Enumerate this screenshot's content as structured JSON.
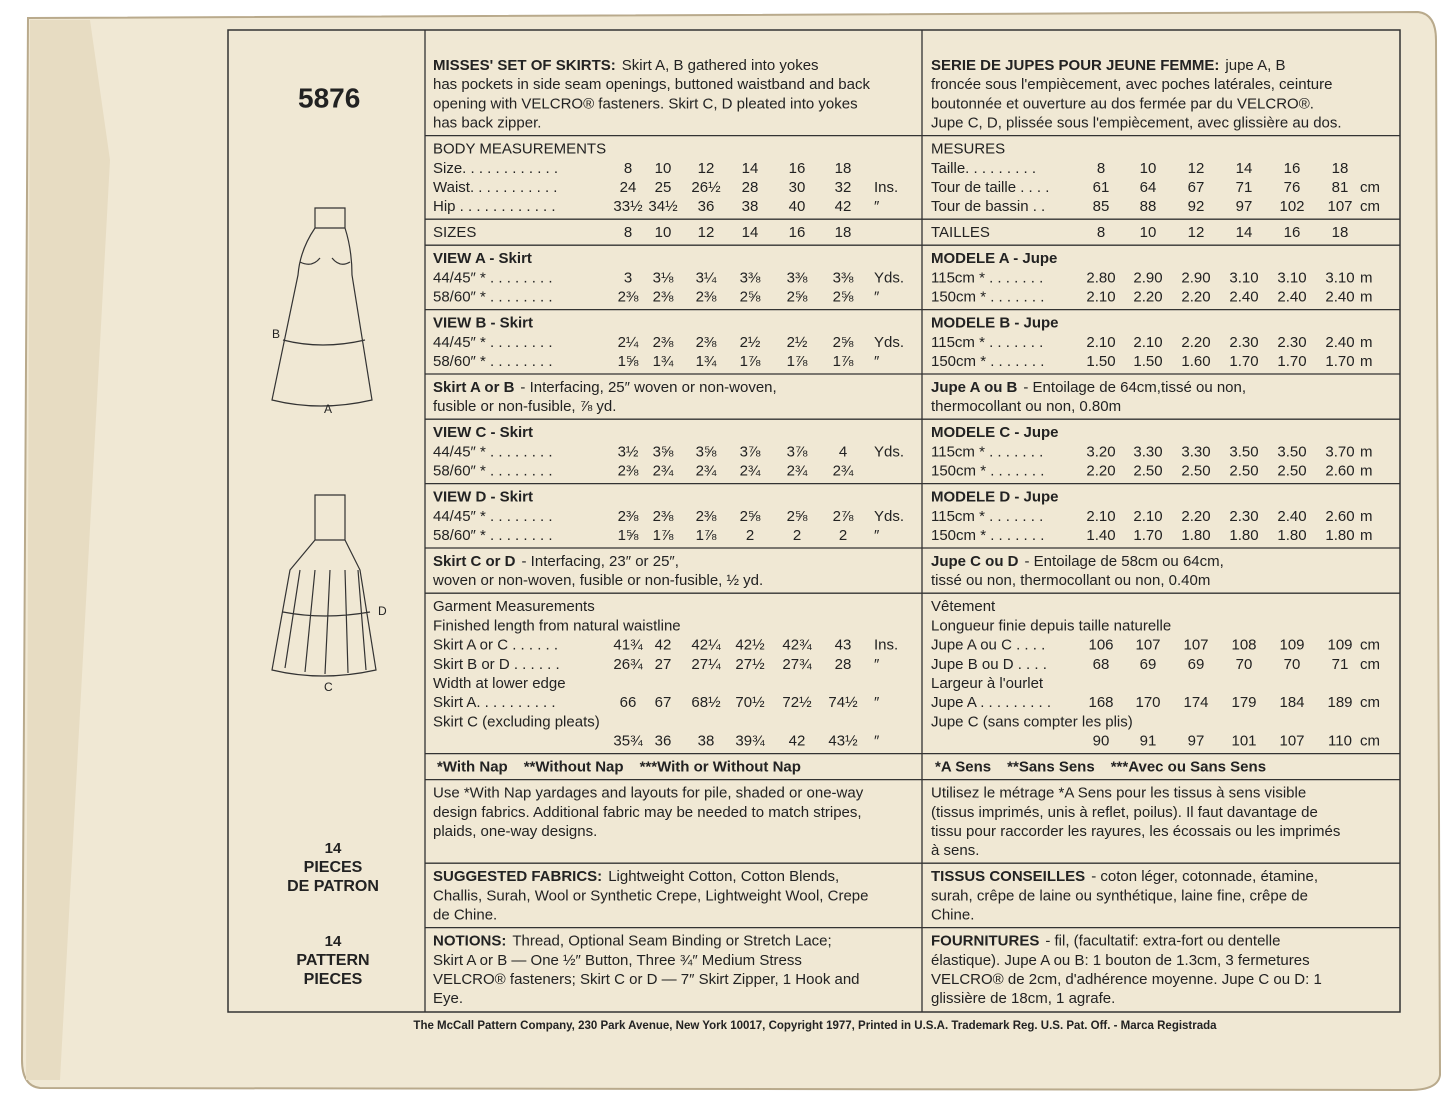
{
  "left": {
    "number": "5876",
    "labels": [
      "B",
      "A",
      "D",
      "C"
    ],
    "pieces_fr": [
      "14",
      "PIECES",
      "DE PATRON"
    ],
    "pieces_en": [
      "14",
      "PATTERN",
      "PIECES"
    ]
  },
  "sections": [
    {
      "en": {
        "kind": "para",
        "lead": "MISSES' SET OF SKIRTS:",
        "lines": [
          "Skirt A, B gathered into yokes",
          "has pockets in side seam openings, buttoned waistband and back",
          "opening with VELCRO® fasteners. Skirt C, D pleated into yokes",
          "has back zipper."
        ]
      },
      "fr": {
        "kind": "para",
        "lead": "SERIE DE JUPES POUR JEUNE FEMME:",
        "lines": [
          "jupe A, B",
          "froncée sous l'empiècement, avec poches latérales, ceinture",
          "boutonnée et ouverture au dos fermée par du VELCRO®.",
          "Jupe C, D, plissée sous l'empiècement, avec glissière au dos."
        ]
      }
    },
    {
      "en": {
        "kind": "table",
        "title": "BODY MEASUREMENTS",
        "rows": [
          [
            "Size. . . . . . . . . . . .",
            "8",
            "10",
            "12",
            "14",
            "16",
            "18"
          ],
          [
            "Waist. . . . . . . . . . .",
            "24",
            "25",
            "26½",
            "28",
            "30",
            "32",
            "Ins."
          ],
          [
            "Hip . . . . . . . . . . . .",
            "33½",
            "34½",
            "36",
            "38",
            "40",
            "42",
            "″"
          ]
        ]
      },
      "fr": {
        "kind": "table",
        "title": "MESURES",
        "rows": [
          [
            "Taille. . . . . . . . .",
            "8",
            "10",
            "12",
            "14",
            "16",
            "18"
          ],
          [
            "Tour de taille . . . .",
            "61",
            "64",
            "67",
            "71",
            "76",
            "81",
            "cm"
          ],
          [
            "Tour de bassin . .",
            "85",
            "88",
            "92",
            "97",
            "102",
            "107",
            "cm"
          ]
        ]
      }
    },
    {
      "en": {
        "kind": "table",
        "rows": [
          [
            "SIZES",
            "8",
            "10",
            "12",
            "14",
            "16",
            "18"
          ]
        ]
      },
      "fr": {
        "kind": "table",
        "rows": [
          [
            "TAILLES",
            "8",
            "10",
            "12",
            "14",
            "16",
            "18"
          ]
        ]
      }
    },
    {
      "en": {
        "kind": "view",
        "title": "VIEW A - Skirt",
        "rows": [
          [
            "44/45″ * . . . . . . . .",
            "3",
            "3⅛",
            "3¼",
            "3⅜",
            "3⅜",
            "3⅜",
            "Yds."
          ],
          [
            "58/60″ * . . . . . . . .",
            "2⅜",
            "2⅜",
            "2⅜",
            "2⅝",
            "2⅝",
            "2⅝",
            "″"
          ]
        ]
      },
      "fr": {
        "kind": "view",
        "title": "MODELE A - Jupe",
        "rows": [
          [
            "115cm * . . . . . . .",
            "2.80",
            "2.90",
            "2.90",
            "3.10",
            "3.10",
            "3.10",
            "m"
          ],
          [
            "150cm * . . . . . . .",
            "2.10",
            "2.20",
            "2.20",
            "2.40",
            "2.40",
            "2.40",
            "m"
          ]
        ]
      }
    },
    {
      "en": {
        "kind": "view",
        "title": "VIEW B - Skirt",
        "rows": [
          [
            "44/45″ * . . . . . . . .",
            "2¼",
            "2⅜",
            "2⅜",
            "2½",
            "2½",
            "2⅝",
            "Yds."
          ],
          [
            "58/60″ * . . . . . . . .",
            "1⅝",
            "1¾",
            "1¾",
            "1⅞",
            "1⅞",
            "1⅞",
            "″"
          ]
        ]
      },
      "fr": {
        "kind": "view",
        "title": "MODELE B - Jupe",
        "rows": [
          [
            "115cm * . . . . . . .",
            "2.10",
            "2.10",
            "2.20",
            "2.30",
            "2.30",
            "2.40",
            "m"
          ],
          [
            "150cm * . . . . . . .",
            "1.50",
            "1.50",
            "1.60",
            "1.70",
            "1.70",
            "1.70",
            "m"
          ]
        ]
      }
    },
    {
      "en": {
        "kind": "para",
        "lead": "Skirt A or B",
        "lines": [
          "- Interfacing, 25″ woven or non-woven,",
          "fusible or non-fusible,  ⅞ yd."
        ]
      },
      "fr": {
        "kind": "para",
        "lead": "Jupe A ou B",
        "lines": [
          "- Entoilage de 64cm,tissé ou non,",
          "thermocollant ou non, 0.80m"
        ]
      }
    },
    {
      "en": {
        "kind": "view",
        "title": "VIEW C - Skirt",
        "rows": [
          [
            "44/45″ * . . . . . . . .",
            "3½",
            "3⅝",
            "3⅝",
            "3⅞",
            "3⅞",
            "4",
            "Yds."
          ],
          [
            "58/60″ * . . . . . . . .",
            "2⅜",
            "2¾",
            "2¾",
            "2¾",
            "2¾",
            "2¾"
          ]
        ]
      },
      "fr": {
        "kind": "view",
        "title": "MODELE C - Jupe",
        "rows": [
          [
            "115cm * . . . . . . .",
            "3.20",
            "3.30",
            "3.30",
            "3.50",
            "3.50",
            "3.70",
            "m"
          ],
          [
            "150cm * . . . . . . .",
            "2.20",
            "2.50",
            "2.50",
            "2.50",
            "2.50",
            "2.60",
            "m"
          ]
        ]
      }
    },
    {
      "en": {
        "kind": "view",
        "title": "VIEW D - Skirt",
        "rows": [
          [
            "44/45″ * . . . . . . . .",
            "2⅜",
            "2⅜",
            "2⅜",
            "2⅝",
            "2⅝",
            "2⅞",
            "Yds."
          ],
          [
            "58/60″ * . . . . . . . .",
            "1⅝",
            "1⅞",
            "1⅞",
            "2",
            "2",
            "2",
            "″"
          ]
        ]
      },
      "fr": {
        "kind": "view",
        "title": "MODELE D - Jupe",
        "rows": [
          [
            "115cm * . . . . . . .",
            "2.10",
            "2.10",
            "2.20",
            "2.30",
            "2.40",
            "2.60",
            "m"
          ],
          [
            "150cm * . . . . . . .",
            "1.40",
            "1.70",
            "1.80",
            "1.80",
            "1.80",
            "1.80",
            "m"
          ]
        ]
      }
    },
    {
      "en": {
        "kind": "para",
        "lead": "Skirt C or D",
        "lines": [
          "- Interfacing, 23″ or 25″,",
          "woven or non-woven, fusible or non-fusible,  ½ yd."
        ]
      },
      "fr": {
        "kind": "para",
        "lead": "Jupe C ou D",
        "lines": [
          "- Entoilage de 58cm ou 64cm,",
          "tissé ou non, thermocollant ou non, 0.40m"
        ]
      }
    },
    {
      "en": {
        "kind": "table",
        "title": "Garment Measurements",
        "rows": [
          "Finished length from natural waistline",
          [
            "Skirt A or C . . . . . .",
            "41¾",
            "42",
            "42¼",
            "42½",
            "42¾",
            "43",
            "Ins."
          ],
          [
            "Skirt B or D . . . . . .",
            "26¾",
            "27",
            "27¼",
            "27½",
            "27¾",
            "28",
            "″"
          ],
          "Width at lower edge",
          [
            "Skirt A. . . . . . . . . .",
            "66",
            "67",
            "68½",
            "70½",
            "72½",
            "74½",
            "″"
          ],
          "Skirt C (excluding pleats)",
          [
            null,
            "35¾",
            "36",
            "38",
            "39¾",
            "42",
            "43½",
            "″"
          ]
        ]
      },
      "fr": {
        "kind": "table",
        "title": "Vêtement",
        "rows": [
          "Longueur finie depuis taille naturelle",
          [
            "Jupe A ou C . . . .",
            "106",
            "107",
            "107",
            "108",
            "109",
            "109",
            "cm"
          ],
          [
            "Jupe B ou D . . . .",
            "68",
            "69",
            "69",
            "70",
            "70",
            "71",
            "cm"
          ],
          "Largeur à l'ourlet",
          [
            "Jupe A . . . . . . . . .",
            "168",
            "170",
            "174",
            "179",
            "184",
            "189",
            "cm"
          ],
          "Jupe C (sans compter les plis)",
          [
            null,
            "90",
            "91",
            "97",
            "101",
            "107",
            "110",
            "cm"
          ]
        ]
      }
    },
    {
      "en": {
        "kind": "nap",
        "items": [
          "*With Nap",
          "**Without Nap",
          "***With or Without Nap"
        ]
      },
      "fr": {
        "kind": "nap",
        "items": [
          "*A Sens",
          "**Sans Sens",
          "***Avec ou Sans Sens"
        ]
      }
    },
    {
      "en": {
        "kind": "para",
        "lines": [
          "Use *With Nap yardages and layouts for pile, shaded or one-way",
          "design fabrics. Additional fabric may be needed to match stripes,",
          "plaids, one-way designs."
        ]
      },
      "fr": {
        "kind": "para",
        "lines": [
          "Utilisez le métrage *A Sens pour les tissus à sens visible",
          "(tissus imprimés, unis à reflet, poilus). Il faut davantage de",
          "tissu pour raccorder les rayures, les écossais ou les imprimés",
          "à sens."
        ]
      }
    },
    {
      "en": {
        "kind": "para",
        "lead": "SUGGESTED FABRICS:",
        "lines": [
          "Lightweight Cotton, Cotton Blends,",
          "Challis, Surah, Wool or Synthetic Crepe, Lightweight Wool, Crepe",
          "de Chine."
        ]
      },
      "fr": {
        "kind": "para",
        "lead": "TISSUS CONSEILLES",
        "lines": [
          "- coton léger, cotonnade, étamine,",
          "surah, crêpe de laine ou synthétique, laine fine, crêpe de",
          "Chine."
        ]
      }
    },
    {
      "en": {
        "kind": "para",
        "lead": "NOTIONS:",
        "lines": [
          "Thread, Optional Seam Binding or Stretch Lace;",
          "Skirt A or B — One ½″ Button, Three ¾″ Medium Stress",
          "VELCRO® fasteners; Skirt C or D — 7″ Skirt Zipper, 1 Hook and",
          "Eye."
        ]
      },
      "fr": {
        "kind": "para",
        "lead": "FOURNITURES",
        "lines": [
          "- fil, (facultatif: extra-fort ou dentelle",
          "élastique). Jupe A ou B: 1 bouton de 1.3cm, 3 fermetures",
          "VELCRO® de 2cm, d'adhérence moyenne. Jupe C ou D: 1",
          "glissière de 18cm, 1 agrafe."
        ]
      }
    }
  ],
  "footer": "The McCall Pattern Company, 230 Park Avenue, New York 10017, Copyright 1977, Printed in U.S.A. Trademark Reg. U.S. Pat. Off. - Marca Registrada"
}
